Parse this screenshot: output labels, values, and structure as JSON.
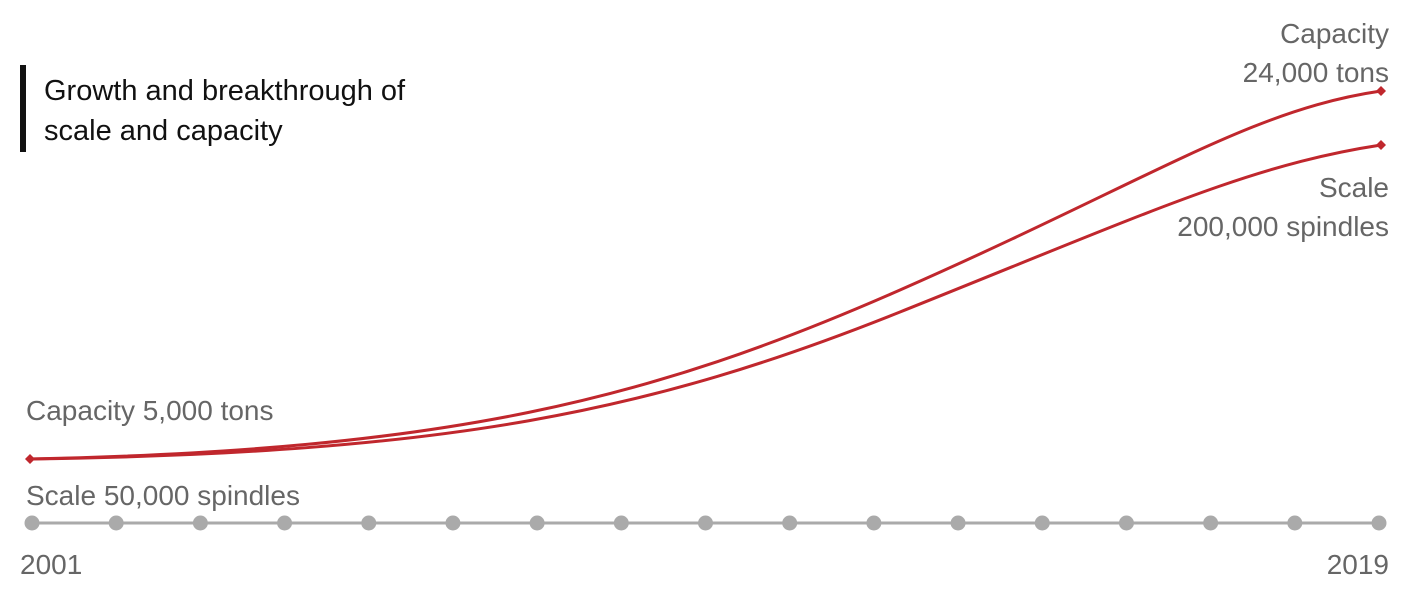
{
  "title": [
    "Growth and breakthrough of",
    "scale and capacity"
  ],
  "start_labels": {
    "capacity": "Capacity 5,000 tons",
    "scale": "Scale 50,000 spindles"
  },
  "end_labels": {
    "capacity": [
      "Capacity",
      "24,000 tons"
    ],
    "scale": [
      "Scale",
      "200,000 spindles"
    ]
  },
  "timeline": {
    "start": "2001",
    "end": "2019"
  }
}
